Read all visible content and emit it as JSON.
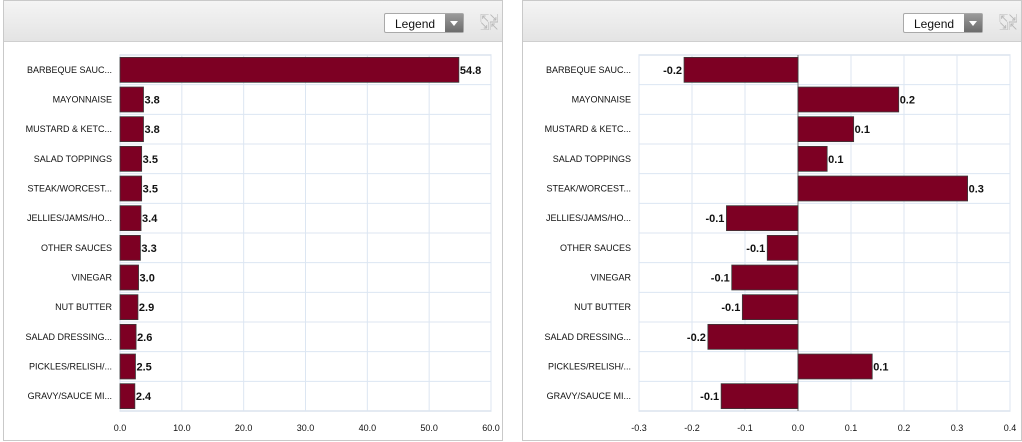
{
  "panels": [
    {
      "legend_label": "Legend",
      "chart_data": {
        "type": "bar",
        "orientation": "horizontal",
        "categories": [
          "BARBEQUE SAUC...",
          "MAYONNAISE",
          "MUSTARD & KETC...",
          "SALAD TOPPINGS",
          "STEAK/WORCEST...",
          "JELLIES/JAMS/HO...",
          "OTHER SAUCES",
          "VINEGAR",
          "NUT BUTTER",
          "SALAD DRESSING...",
          "PICKLES/RELISH/...",
          "GRAVY/SAUCE MI..."
        ],
        "values": [
          54.8,
          3.8,
          3.8,
          3.5,
          3.5,
          3.4,
          3.3,
          3.0,
          2.9,
          2.6,
          2.5,
          2.4
        ],
        "value_labels": [
          "54.8",
          "3.8",
          "3.8",
          "3.5",
          "3.5",
          "3.4",
          "3.3",
          "3.0",
          "2.9",
          "2.6",
          "2.5",
          "2.4"
        ],
        "xlim": [
          0,
          60
        ],
        "xticks": [
          0,
          10,
          20,
          30,
          40,
          50,
          60
        ],
        "xtick_labels": [
          "0.0",
          "10.0",
          "20.0",
          "30.0",
          "40.0",
          "50.0",
          "60.0"
        ],
        "grid": true,
        "bar_color": "#7d0023"
      }
    },
    {
      "legend_label": "Legend",
      "chart_data": {
        "type": "bar",
        "orientation": "horizontal",
        "categories": [
          "BARBEQUE SAUC...",
          "MAYONNAISE",
          "MUSTARD & KETC...",
          "SALAD TOPPINGS",
          "STEAK/WORCEST...",
          "JELLIES/JAMS/HO...",
          "OTHER SAUCES",
          "VINEGAR",
          "NUT BUTTER",
          "SALAD DRESSING...",
          "PICKLES/RELISH/...",
          "GRAVY/SAUCE MI..."
        ],
        "values": [
          -0.215,
          0.19,
          0.105,
          0.055,
          0.32,
          -0.135,
          -0.058,
          -0.125,
          -0.105,
          -0.17,
          0.14,
          -0.145
        ],
        "value_labels": [
          "-0.2",
          "0.2",
          "0.1",
          "0.1",
          "0.3",
          "-0.1",
          "-0.1",
          "-0.1",
          "-0.1",
          "-0.2",
          "0.1",
          "-0.1"
        ],
        "xlim": [
          -0.3,
          0.4
        ],
        "xticks": [
          -0.3,
          -0.2,
          -0.1,
          0,
          0.1,
          0.2,
          0.3,
          0.4
        ],
        "xtick_labels": [
          "-0.3",
          "-0.2",
          "-0.1",
          "0.0",
          "0.1",
          "0.2",
          "0.3",
          "0.4"
        ],
        "grid": true,
        "bar_color": "#7d0023"
      }
    }
  ]
}
